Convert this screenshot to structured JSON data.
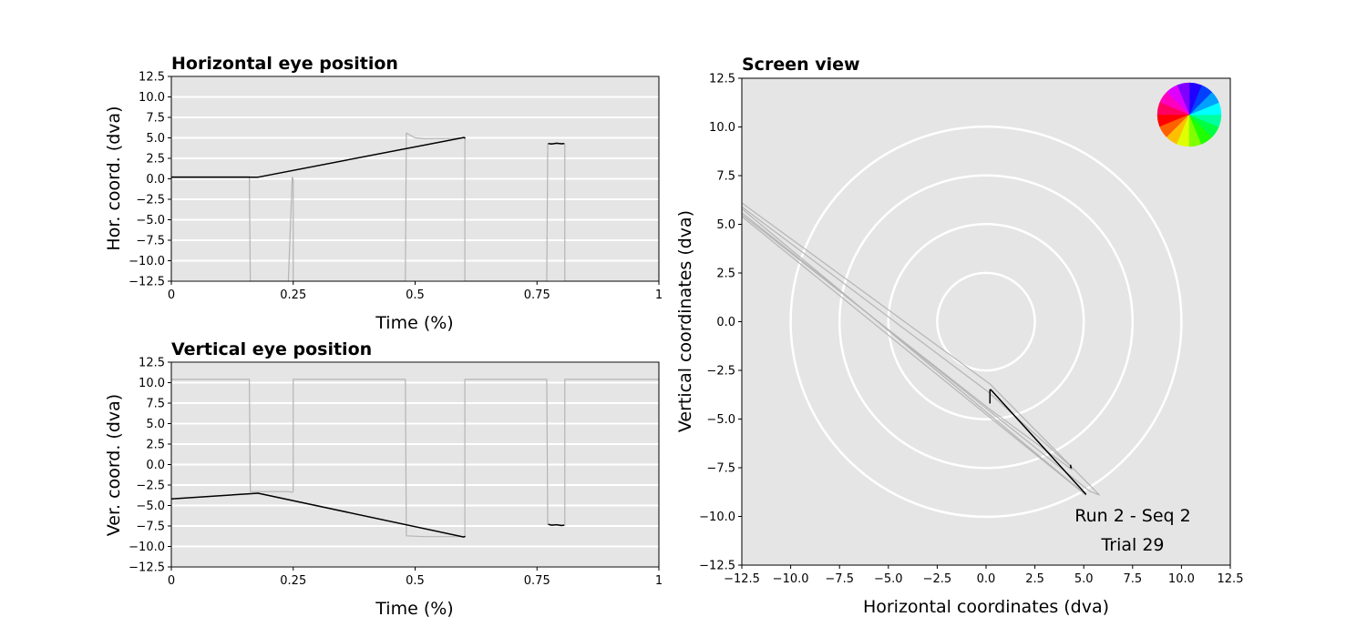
{
  "chart_data": [
    {
      "type": "line",
      "title": "Horizontal eye position",
      "xlabel": "Time (%)",
      "ylabel": "Hor. coord. (dva)",
      "xlim": [
        0,
        1
      ],
      "ylim": [
        -12.5,
        12.5
      ],
      "xticks": [
        "0",
        "0.25",
        "0.5",
        "0.75",
        "1"
      ],
      "xtick_values": [
        0,
        0.25,
        0.5,
        0.75,
        1
      ],
      "yticks": [
        "−12.5",
        "−10.0",
        "−7.5",
        "−5.0",
        "−2.5",
        "0.0",
        "2.5",
        "5.0",
        "7.5",
        "10.0",
        "12.5"
      ],
      "ytick_values": [
        -12.5,
        -10,
        -7.5,
        -5,
        -2.5,
        0,
        2.5,
        5,
        7.5,
        10,
        12.5
      ],
      "grid": "horizontal",
      "background": "#e5e5e5",
      "series": [
        {
          "color": "#b5b5b5",
          "x": [
            0,
            0.16,
            0.162,
            0.24,
            0.248,
            0.25,
            0.25,
            0.48,
            0.482,
            0.5,
            0.52,
            0.58,
            0.6,
            0.602,
            0.602,
            0.77,
            0.772,
            0.806,
            0.807,
            0.807,
            1
          ],
          "y": [
            0.3,
            0.3,
            -12.5,
            -12.5,
            0.2,
            -0.1,
            -12.5,
            -12.5,
            5.6,
            5.0,
            4.9,
            4.95,
            5.0,
            5.0,
            -12.5,
            -12.5,
            4.3,
            4.3,
            4.3,
            -12.5,
            -12.5
          ]
        },
        {
          "color": "#000000",
          "x": [
            0,
            0.178,
            0.6,
            0.603
          ],
          "y": [
            0.2,
            0.2,
            5.05,
            4.95
          ]
        },
        {
          "color": "#000000",
          "x": [
            0.773,
            0.78,
            0.79,
            0.8,
            0.806
          ],
          "y": [
            4.3,
            4.25,
            4.35,
            4.28,
            4.3
          ]
        }
      ]
    },
    {
      "type": "line",
      "title": "Vertical eye position",
      "xlabel": "Time (%)",
      "ylabel": "Ver. coord. (dva)",
      "xlim": [
        0,
        1
      ],
      "ylim": [
        -12.5,
        12.5
      ],
      "xticks": [
        "0",
        "0.25",
        "0.5",
        "0.75",
        "1"
      ],
      "xtick_values": [
        0,
        0.25,
        0.5,
        0.75,
        1
      ],
      "yticks": [
        "−12.5",
        "−10.0",
        "−7.5",
        "−5.0",
        "−2.5",
        "0.0",
        "2.5",
        "5.0",
        "7.5",
        "10.0",
        "12.5"
      ],
      "ytick_values": [
        -12.5,
        -10,
        -7.5,
        -5,
        -2.5,
        0,
        2.5,
        5,
        7.5,
        10,
        12.5
      ],
      "grid": "horizontal",
      "background": "#e5e5e5",
      "series": [
        {
          "color": "#b5b5b5",
          "x": [
            0,
            0.16,
            0.162,
            0.24,
            0.248,
            0.25,
            0.25,
            0.48,
            0.482,
            0.52,
            0.58,
            0.6,
            0.602,
            0.602,
            0.77,
            0.772,
            0.806,
            0.807,
            0.807,
            1
          ],
          "y": [
            10.4,
            10.4,
            -3.3,
            -3.3,
            -3.4,
            -3.3,
            10.4,
            10.4,
            -8.7,
            -8.8,
            -8.8,
            -8.8,
            -8.8,
            10.4,
            10.4,
            -7.3,
            -7.4,
            -7.4,
            10.4,
            10.4
          ]
        },
        {
          "color": "#000000",
          "x": [
            0,
            0.178,
            0.6,
            0.603
          ],
          "y": [
            -4.2,
            -3.5,
            -8.85,
            -8.75
          ]
        },
        {
          "color": "#000000",
          "x": [
            0.773,
            0.78,
            0.79,
            0.8,
            0.806
          ],
          "y": [
            -7.3,
            -7.4,
            -7.35,
            -7.45,
            -7.4
          ]
        }
      ]
    },
    {
      "type": "line",
      "title": "Screen view",
      "xlabel": "Horizontal coordinates (dva)",
      "ylabel": "Vertical coordinates (dva)",
      "xlim": [
        -12.5,
        12.5
      ],
      "ylim": [
        -12.5,
        12.5
      ],
      "xticks": [
        "−12.5",
        "−10.0",
        "−7.5",
        "−5.0",
        "−2.5",
        "0.0",
        "2.5",
        "5.0",
        "7.5",
        "10.0",
        "12.5"
      ],
      "xtick_values": [
        -12.5,
        -10,
        -7.5,
        -5,
        -2.5,
        0,
        2.5,
        5,
        7.5,
        10,
        12.5
      ],
      "yticks": [
        "−12.5",
        "−10.0",
        "−7.5",
        "−5.0",
        "−2.5",
        "0.0",
        "2.5",
        "5.0",
        "7.5",
        "10.0",
        "12.5"
      ],
      "ytick_values": [
        -12.5,
        -10,
        -7.5,
        -5,
        -2.5,
        0,
        2.5,
        5,
        7.5,
        10,
        12.5
      ],
      "background": "#e5e5e5",
      "rings": [
        2.5,
        5,
        7.5,
        10
      ],
      "series": [
        {
          "color": "#b5b5b5",
          "x": [
            -12.5,
            0.2,
            5.8,
            5.3,
            -12.5
          ],
          "y": [
            6.1,
            -3.2,
            -8.9,
            -8.7,
            5.6
          ]
        },
        {
          "color": "#b5b5b5",
          "x": [
            -12.5,
            0.1,
            4.3,
            4.4,
            0.2,
            -12.5
          ],
          "y": [
            5.9,
            -3.6,
            -7.4,
            -7.6,
            -4.5,
            5.5
          ]
        },
        {
          "color": "#b5b5b5",
          "x": [
            -12.5,
            5.0,
            5.1,
            -12.5
          ],
          "y": [
            5.8,
            -8.8,
            -8.9,
            5.4
          ]
        },
        {
          "color": "#000000",
          "x": [
            0.2,
            0.2,
            0.25,
            5.1,
            5.05
          ],
          "y": [
            -4.2,
            -3.5,
            -3.5,
            -8.85,
            -8.8
          ]
        },
        {
          "color": "#000000",
          "x": [
            4.32,
            4.35,
            4.3
          ],
          "y": [
            -7.35,
            -7.5,
            -7.45
          ]
        }
      ],
      "annotations": [
        "Run 2 - Seq 2",
        "Trial 29"
      ],
      "color_wheel_colors": [
        "#ff0000",
        "#ff6000",
        "#ffbf00",
        "#dfff00",
        "#80ff00",
        "#20ff00",
        "#00ff40",
        "#00ffa0",
        "#00ffff",
        "#00a0ff",
        "#0040ff",
        "#2000ff",
        "#8000ff",
        "#df00ff",
        "#ff00bf",
        "#ff0060"
      ]
    }
  ]
}
